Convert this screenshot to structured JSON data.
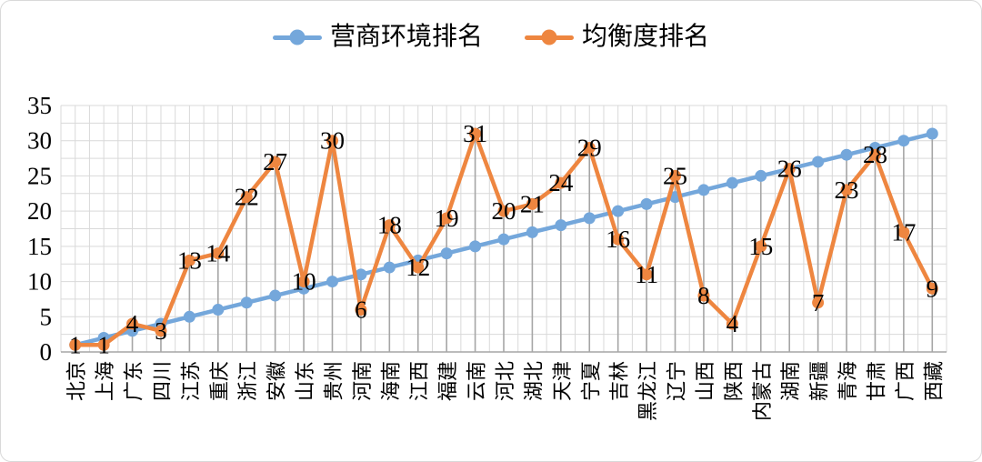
{
  "chart_data": {
    "type": "line",
    "title": "",
    "xlabel": "",
    "ylabel": "",
    "categories": [
      "北京",
      "上海",
      "广东",
      "四川",
      "江苏",
      "重庆",
      "浙江",
      "安徽",
      "山东",
      "贵州",
      "河南",
      "海南",
      "江西",
      "福建",
      "云南",
      "河北",
      "湖北",
      "天津",
      "宁夏",
      "吉林",
      "黑龙江",
      "辽宁",
      "山西",
      "陕西",
      "内蒙古",
      "湖南",
      "新疆",
      "青海",
      "甘肃",
      "广西",
      "西藏"
    ],
    "series": [
      {
        "name": "营商环境排名",
        "color": "#74a7db",
        "marker": "circle",
        "data_labels": false,
        "values": [
          1,
          2,
          3,
          4,
          5,
          6,
          7,
          8,
          9,
          10,
          11,
          12,
          13,
          14,
          15,
          16,
          17,
          18,
          19,
          20,
          21,
          22,
          23,
          24,
          25,
          26,
          27,
          28,
          29,
          30,
          31
        ]
      },
      {
        "name": "均衡度排名",
        "color": "#ee8640",
        "marker": "circle",
        "data_labels": "center",
        "values": [
          1,
          1,
          4,
          3,
          13,
          14,
          22,
          27,
          10,
          30,
          6,
          18,
          12,
          19,
          31,
          20,
          21,
          24,
          29,
          16,
          11,
          25,
          8,
          4,
          15,
          26,
          7,
          23,
          28,
          17,
          9
        ]
      }
    ],
    "ylim": [
      0,
      35
    ],
    "y_tick_labels": [
      "0",
      "5",
      "10",
      "15",
      "20",
      "25",
      "30",
      "35"
    ],
    "y_major_step": 5,
    "y_minor_step": 2.5,
    "x_minor_gridlines": true,
    "drop_lines": true,
    "legend_position": "top",
    "grid_on": true,
    "grid_color": "#d9d9d9",
    "drop_line_color": "#a6a6a6",
    "axis_line_color": "#a6a6a6",
    "label_color": "#000000"
  }
}
